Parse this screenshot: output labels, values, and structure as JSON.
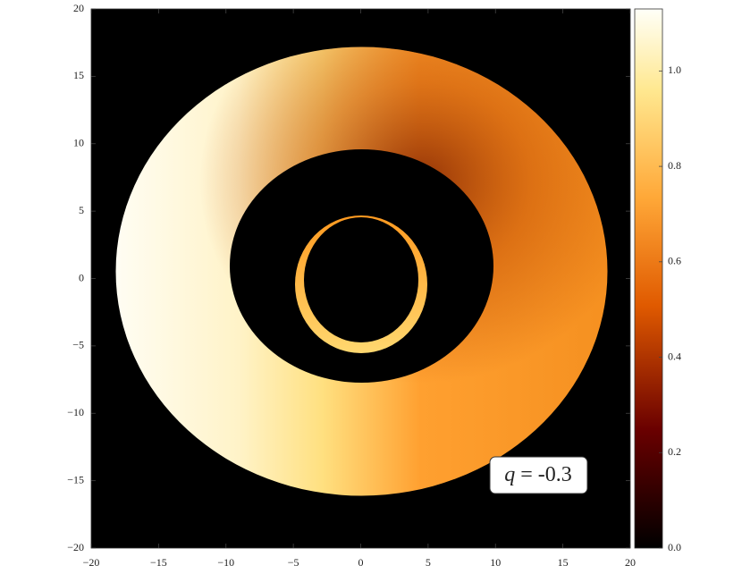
{
  "chart_data": {
    "type": "image",
    "xlim": [
      -20,
      20
    ],
    "ylim": [
      -20,
      20
    ],
    "xticks": [
      {
        "value": -20,
        "label": "−20"
      },
      {
        "value": -15,
        "label": "−15"
      },
      {
        "value": -10,
        "label": "−10"
      },
      {
        "value": -5,
        "label": "−5"
      },
      0,
      5,
      10,
      15,
      20
    ],
    "yticks": [
      {
        "value": -20,
        "label": "−20"
      },
      {
        "value": -15,
        "label": "−15"
      },
      {
        "value": -10,
        "label": "−10"
      },
      {
        "value": -5,
        "label": "−5"
      },
      0,
      5,
      10,
      15,
      20
    ],
    "colorbar": {
      "colormap": "afmhot",
      "clim": [
        0,
        1.13
      ],
      "ticks": [
        {
          "value": 0,
          "label": "0.0"
        },
        0.2,
        0.4,
        0.6,
        0.8,
        {
          "value": 1,
          "label": "1.0"
        }
      ]
    },
    "annotation": {
      "symbol": "q",
      "text": "= -0.3"
    }
  }
}
